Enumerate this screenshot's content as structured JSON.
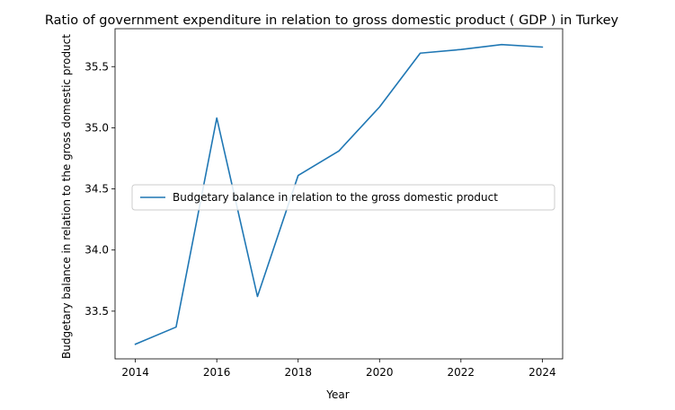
{
  "chart_data": {
    "type": "line",
    "title": "Ratio of government expenditure in relation to gross domestic product ( GDP ) in Turkey",
    "xlabel": "Year",
    "ylabel": "Budgetary balance in relation to the gross domestic product",
    "xlim": [
      2013.5,
      2024.5
    ],
    "ylim": [
      33.11,
      35.81
    ],
    "x_ticks": [
      2014,
      2016,
      2018,
      2020,
      2022,
      2024
    ],
    "y_ticks": [
      33.5,
      34.0,
      34.5,
      35.0,
      35.5
    ],
    "y_tick_labels": [
      "33.5",
      "34.0",
      "34.5",
      "35.0",
      "35.5"
    ],
    "grid": false,
    "legend_position": "center-left",
    "series": [
      {
        "name": "Budgetary balance in relation to the gross domestic product",
        "color": "#1f77b4",
        "x": [
          2014,
          2015,
          2016,
          2017,
          2018,
          2019,
          2020,
          2021,
          2022,
          2023,
          2024
        ],
        "y": [
          33.23,
          33.37,
          35.08,
          33.62,
          34.61,
          34.81,
          35.17,
          35.61,
          35.64,
          35.68,
          35.66
        ]
      }
    ]
  }
}
